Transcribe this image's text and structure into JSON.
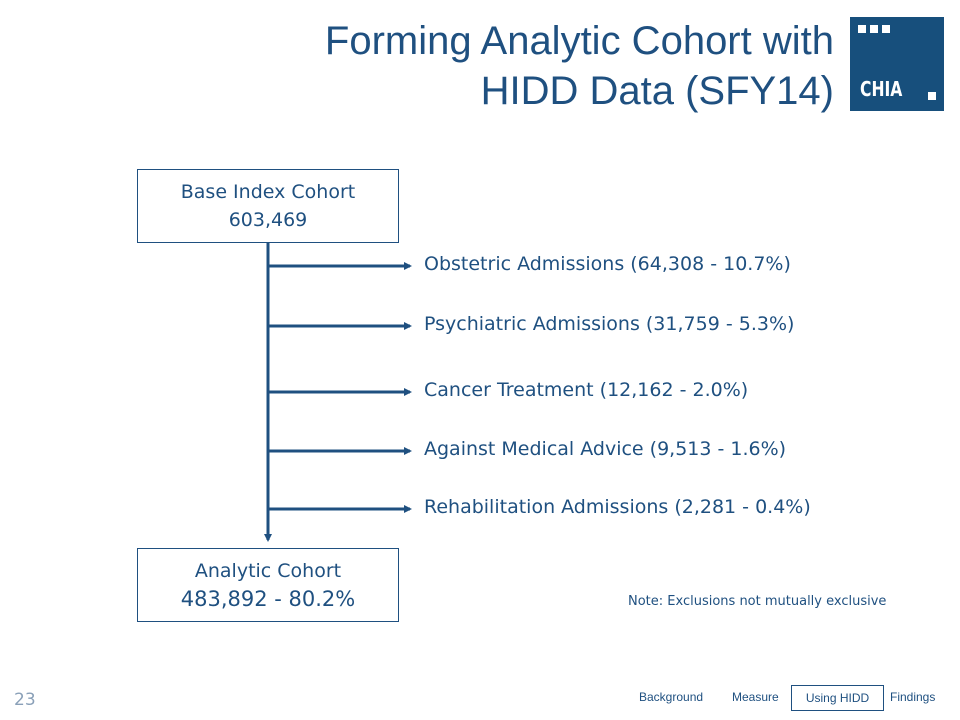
{
  "title": {
    "line1": "Forming Analytic Cohort with",
    "line2": "HIDD Data (SFY14)"
  },
  "logo": {
    "word": "CHIA",
    "icon": "chia-logo"
  },
  "base_cohort": {
    "label": "Base Index Cohort",
    "value": "603,469"
  },
  "exclusions": [
    "Obstetric Admissions (64,308 - 10.7%)",
    "Psychiatric Admissions (31,759 - 5.3%)",
    "Cancer Treatment (12,162 - 2.0%)",
    "Against Medical Advice (9,513 - 1.6%)",
    "Rehabilitation Admissions (2,281 - 0.4%)"
  ],
  "analytic_cohort": {
    "label": "Analytic Cohort",
    "value": "483,892 - 80.2%"
  },
  "note": "Note: Exclusions not mutually exclusive",
  "slide_number": "23",
  "nav": {
    "items": [
      "Background",
      "Measure",
      "Using HIDD",
      "Findings"
    ],
    "active": "Using HIDD"
  },
  "colors": {
    "primary": "#1f5080",
    "logo_bg": "#174f7c"
  }
}
